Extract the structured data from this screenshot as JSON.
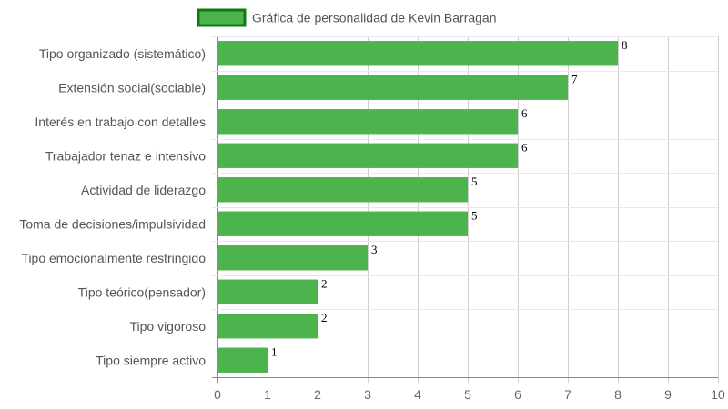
{
  "chart_data": {
    "type": "bar",
    "orientation": "horizontal",
    "legend_position": "top",
    "grid": true,
    "xlim": [
      0,
      10
    ],
    "x_ticks": [
      "0",
      "1",
      "2",
      "3",
      "4",
      "5",
      "6",
      "7",
      "8",
      "9",
      "10"
    ],
    "categories": [
      "Tipo organizado (sistemático)",
      "Extensión social(sociable)",
      "Interés en trabajo con detalles",
      "Trabajador tenaz e intensivo",
      "Actividad de liderazgo",
      "Toma de decisiones/impulsividad",
      "Tipo emocionalmente restringido",
      "Tipo teórico(pensador)",
      "Tipo vigoroso",
      "Tipo siempre activo"
    ],
    "series": [
      {
        "name": "Gráfica de personalidad de Kevin Barragan",
        "values": [
          8,
          7,
          6,
          6,
          5,
          5,
          3,
          2,
          2,
          1
        ],
        "color": "#4db34d",
        "border_color": "#0f7a0f"
      }
    ]
  }
}
